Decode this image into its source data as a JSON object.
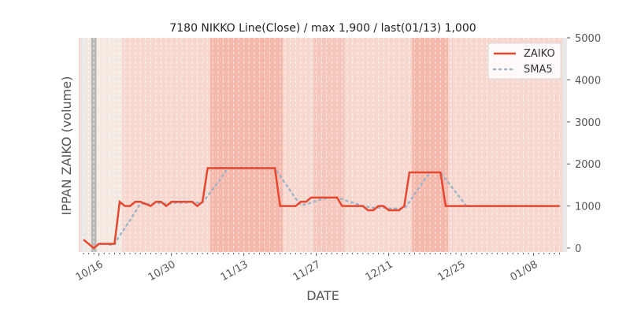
{
  "chart_data": {
    "type": "line",
    "title": "7180 NIKKO Line(Close) / max 1,900 / last(01/13) 1,000",
    "xlabel": "DATE",
    "ylabel": "IPPAN ZAIKO (volume)",
    "ylim": [
      -100,
      5000
    ],
    "yticks": [
      0,
      1000,
      2000,
      3000,
      4000,
      5000
    ],
    "xtick_labels": [
      "10/16",
      "10/30",
      "11/13",
      "11/27",
      "12/11",
      "12/25",
      "01/08"
    ],
    "legend": {
      "position": "top-right",
      "entries": [
        "ZAIKO",
        "SMA5"
      ]
    },
    "colors": {
      "zaiko": "#e8472f",
      "sma": "#9fb4c8"
    },
    "dates": [
      "10/13",
      "10/14",
      "10/15",
      "10/16",
      "10/17",
      "10/18",
      "10/19",
      "10/20",
      "10/21",
      "10/22",
      "10/23",
      "10/24",
      "10/25",
      "10/26",
      "10/27",
      "10/28",
      "10/29",
      "10/30",
      "10/31",
      "11/01",
      "11/02",
      "11/03",
      "11/04",
      "11/05",
      "11/06",
      "11/07",
      "11/08",
      "11/09",
      "11/10",
      "11/11",
      "11/12",
      "11/13",
      "11/14",
      "11/15",
      "11/16",
      "11/17",
      "11/18",
      "11/19",
      "11/20",
      "11/21",
      "11/22",
      "11/23",
      "11/24",
      "11/25",
      "11/26",
      "11/27",
      "11/28",
      "11/29",
      "11/30",
      "12/01",
      "12/02",
      "12/03",
      "12/04",
      "12/05",
      "12/06",
      "12/07",
      "12/08",
      "12/09",
      "12/10",
      "12/11",
      "12/12",
      "12/13",
      "12/14",
      "12/15",
      "12/16",
      "12/17",
      "12/18",
      "12/19",
      "12/20",
      "12/21",
      "12/22",
      "12/23",
      "12/24",
      "12/25",
      "12/26",
      "12/27",
      "12/28",
      "12/29",
      "12/30",
      "12/31",
      "01/01",
      "01/02",
      "01/03",
      "01/04",
      "01/05",
      "01/06",
      "01/07",
      "01/08",
      "01/09",
      "01/10",
      "01/11",
      "01/12",
      "01/13"
    ],
    "series": [
      {
        "name": "ZAIKO",
        "values": [
          200,
          100,
          0,
          100,
          100,
          100,
          100,
          1100,
          1000,
          1000,
          1100,
          1100,
          1050,
          1000,
          1100,
          1100,
          1000,
          1100,
          1100,
          1100,
          1100,
          1100,
          1000,
          1100,
          1900,
          1900,
          1900,
          1900,
          1900,
          1900,
          1900,
          1900,
          1900,
          1900,
          1900,
          1900,
          1900,
          1900,
          1000,
          1000,
          1000,
          1000,
          1100,
          1100,
          1200,
          1200,
          1200,
          1200,
          1200,
          1200,
          1000,
          1000,
          1000,
          1000,
          1000,
          900,
          900,
          1000,
          1000,
          900,
          900,
          900,
          1000,
          1800,
          1800,
          1800,
          1800,
          1800,
          1800,
          1800,
          1000,
          1000,
          1000,
          1000,
          1000,
          1000,
          1000,
          1000,
          1000,
          1000,
          1000,
          1000,
          1000,
          1000,
          1000,
          1000,
          1000,
          1000,
          1000,
          1000,
          1000,
          1000,
          1000
        ]
      },
      {
        "name": "SMA5",
        "window": 5
      }
    ],
    "bands": [
      {
        "from": -1,
        "to": 0,
        "color": "#e8e8e8"
      },
      {
        "from": 0,
        "to": 7,
        "color": "#f3e9e1"
      },
      {
        "from": 1,
        "to": 2,
        "color": "#b8b8b8"
      },
      {
        "from": 7,
        "to": 24,
        "color": "#f6d8d0"
      },
      {
        "from": 24,
        "to": 38,
        "color": "#f4b8ac"
      },
      {
        "from": 38,
        "to": 44,
        "color": "#f6d8d0"
      },
      {
        "from": 44,
        "to": 50,
        "color": "#f4c8bd"
      },
      {
        "from": 50,
        "to": 63,
        "color": "#f6d8d0"
      },
      {
        "from": 63,
        "to": 70,
        "color": "#f4b8ac"
      },
      {
        "from": 70,
        "to": 92,
        "color": "#f6d8d0"
      },
      {
        "from": 92,
        "to": 93,
        "color": "#e8e8e8"
      }
    ]
  }
}
